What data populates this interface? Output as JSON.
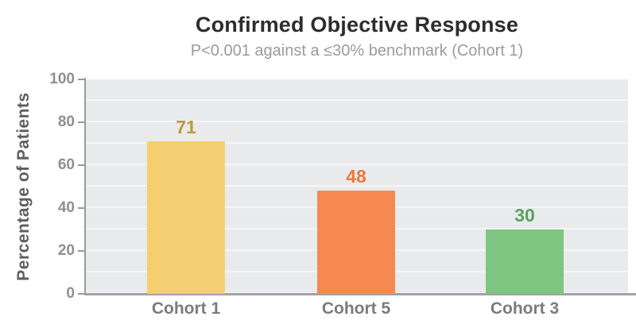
{
  "chart_data": {
    "type": "bar",
    "title": "Confirmed Objective Response",
    "subtitle": "P<0.001 against a ≤30% benchmark (Cohort 1)",
    "ylabel": "Percentage of Patients",
    "xlabel": "",
    "categories": [
      "Cohort 1",
      "Cohort 5",
      "Cohort 3"
    ],
    "values": [
      71,
      48,
      30
    ],
    "value_labels": [
      "71",
      "48",
      "30"
    ],
    "bar_colors": [
      "#f4cf71",
      "#f68a4e",
      "#7ec57f"
    ],
    "value_label_colors": [
      "#c0983d",
      "#e8793f",
      "#57a35a"
    ],
    "ylim": [
      0,
      100
    ],
    "yticks": [
      0,
      20,
      40,
      60,
      80,
      100
    ],
    "grid": "horizontal white gridlines every 10 units",
    "legend": "none",
    "plot_background": "#e9eaec",
    "axis_color": "#98989e",
    "baseline_color": "#a2a2a6",
    "title_color": "#2d2d2d",
    "subtitle_color": "#9b9b9b",
    "tick_label_color": "#8f8f8f",
    "category_label_color": "#7b7b7b"
  }
}
